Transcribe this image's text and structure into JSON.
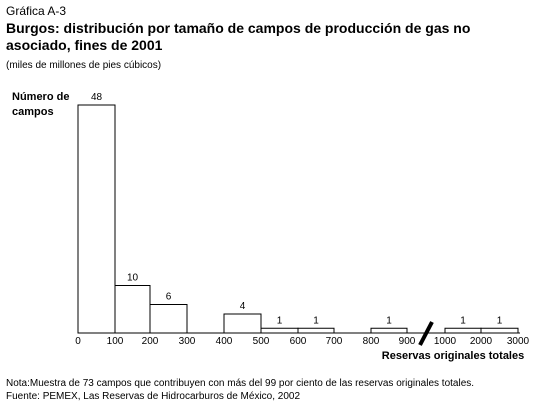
{
  "header": {
    "label": "Gráfica A-3",
    "title_line1": "Burgos: distribución por tamaño de campos de producción de gas no",
    "title_line2": "asociado, fines de 2001",
    "subtitle": "(miles de millones de pies cúbicos)"
  },
  "chart_data": {
    "type": "bar",
    "ylabel_line1": "Número de",
    "ylabel_line2": "campos",
    "xlabel": "Reservas originales totales",
    "ylim": [
      0,
      48
    ],
    "x_ticks": [
      "0",
      "100",
      "200",
      "300",
      "400",
      "500",
      "600",
      "700",
      "800",
      "900",
      "1000",
      "2000",
      "3000"
    ],
    "axis_break_between": [
      "900",
      "1000"
    ],
    "bins": [
      {
        "from": "0",
        "to": "100",
        "value": 48
      },
      {
        "from": "100",
        "to": "200",
        "value": 10
      },
      {
        "from": "200",
        "to": "300",
        "value": 6
      },
      {
        "from": "400",
        "to": "500",
        "value": 4
      },
      {
        "from": "500",
        "to": "600",
        "value": 1
      },
      {
        "from": "600",
        "to": "700",
        "value": 1
      },
      {
        "from": "800",
        "to": "900",
        "value": 1
      },
      {
        "from": "1000",
        "to": "2000",
        "value": 1
      },
      {
        "from": "2000",
        "to": "3000",
        "value": 1
      }
    ]
  },
  "footer": {
    "note": "Nota:Muestra de 73 campos que contribuyen con más del 99 por ciento de las reservas originales totales.",
    "source": "Fuente: PEMEX, Las Reservas de Hidrocarburos de México, 2002"
  }
}
